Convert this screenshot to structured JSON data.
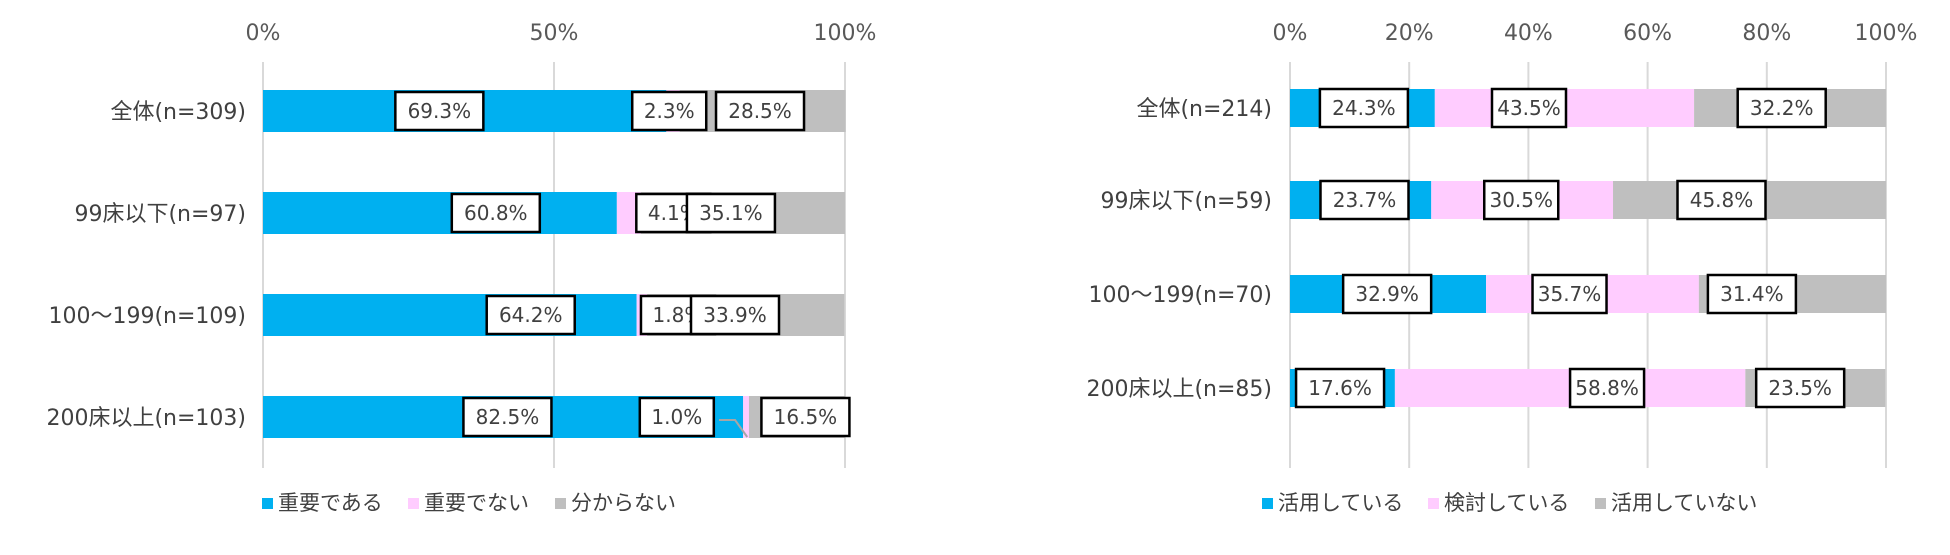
{
  "chart_data": [
    {
      "type": "bar",
      "orientation": "horizontal",
      "stacked": true,
      "percent": true,
      "categories": [
        "全体(n=309)",
        "99床以下(n=97)",
        "100〜199(n=109)",
        "200床以上(n=103)"
      ],
      "series": [
        {
          "name": "重要である",
          "color": "#00B0F0",
          "values": [
            69.3,
            60.8,
            64.2,
            82.5
          ],
          "labels": [
            "69.3%",
            "60.8%",
            "64.2%",
            "82.5%"
          ]
        },
        {
          "name": "重要でない",
          "color": "#FFCCFF",
          "values": [
            2.3,
            4.1,
            1.8,
            1.0
          ],
          "labels": [
            "2.3%",
            "4.1%",
            "1.8%",
            "1.0%"
          ]
        },
        {
          "name": "分からない",
          "color": "#BFBFBF",
          "values": [
            28.5,
            35.1,
            33.9,
            16.5
          ],
          "labels": [
            "28.5%",
            "35.1%",
            "33.9%",
            "16.5%"
          ]
        }
      ],
      "xticks": [
        "0%",
        "50%",
        "100%"
      ],
      "xlim": [
        0,
        100
      ],
      "grid": true,
      "legend": "bottom"
    },
    {
      "type": "bar",
      "orientation": "horizontal",
      "stacked": true,
      "percent": true,
      "categories": [
        "全体(n=214)",
        "99床以下(n=59)",
        "100〜199(n=70)",
        "200床以上(n=85)"
      ],
      "series": [
        {
          "name": "活用している",
          "color": "#00B0F0",
          "values": [
            24.3,
            23.7,
            32.9,
            17.6
          ],
          "labels": [
            "24.3%",
            "23.7%",
            "32.9%",
            "17.6%"
          ]
        },
        {
          "name": "検討している",
          "color": "#FFCCFF",
          "values": [
            43.5,
            30.5,
            35.7,
            58.8
          ],
          "labels": [
            "43.5%",
            "30.5%",
            "35.7%",
            "58.8%"
          ]
        },
        {
          "name": "活用していない",
          "color": "#BFBFBF",
          "values": [
            32.2,
            45.8,
            31.4,
            23.5
          ],
          "labels": [
            "32.2%",
            "45.8%",
            "31.4%",
            "23.5%"
          ]
        }
      ],
      "xticks": [
        "0%",
        "20%",
        "40%",
        "60%",
        "80%",
        "100%"
      ],
      "xlim": [
        0,
        100
      ],
      "grid": true,
      "legend": "bottom"
    }
  ]
}
